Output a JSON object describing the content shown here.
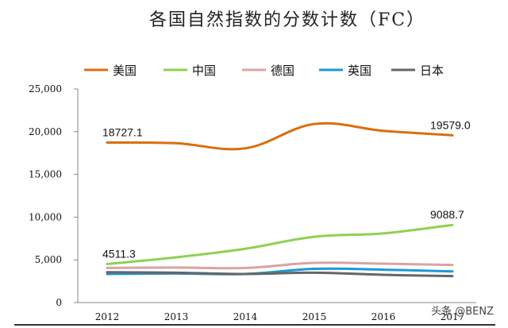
{
  "chart_data": {
    "type": "line",
    "title": "各国自然指数的分数计数（FC）",
    "x": [
      "2012",
      "2013",
      "2014",
      "2015",
      "2016",
      "2017"
    ],
    "yticks": [
      "0",
      "5,000",
      "10,000",
      "15,000",
      "20,000",
      "25,000"
    ],
    "ylim": [
      0,
      25000
    ],
    "grid": false,
    "legend": "top",
    "series": [
      {
        "name": "美国",
        "color": "#d96f0f",
        "values": [
          18727.1,
          18650,
          18050,
          20900,
          20100,
          19579.0
        ]
      },
      {
        "name": "中国",
        "color": "#8fd14f",
        "values": [
          4511.3,
          5300,
          6300,
          7700,
          8100,
          9088.7
        ]
      },
      {
        "name": "德国",
        "color": "#d9a3a3",
        "values": [
          4050,
          4100,
          4050,
          4650,
          4550,
          4400
        ]
      },
      {
        "name": "英国",
        "color": "#1a9ad6",
        "values": [
          3350,
          3400,
          3350,
          3950,
          3850,
          3650
        ]
      },
      {
        "name": "日本",
        "color": "#666666",
        "values": [
          3550,
          3500,
          3350,
          3500,
          3250,
          3100
        ]
      }
    ],
    "annotations": [
      {
        "text": "18727.1",
        "series": 0,
        "index": 0
      },
      {
        "text": "19579.0",
        "series": 0,
        "index": 5
      },
      {
        "text": "4511.3",
        "series": 1,
        "index": 0
      },
      {
        "text": "9088.7",
        "series": 1,
        "index": 5
      }
    ]
  },
  "watermark": "头条 @BENZ"
}
